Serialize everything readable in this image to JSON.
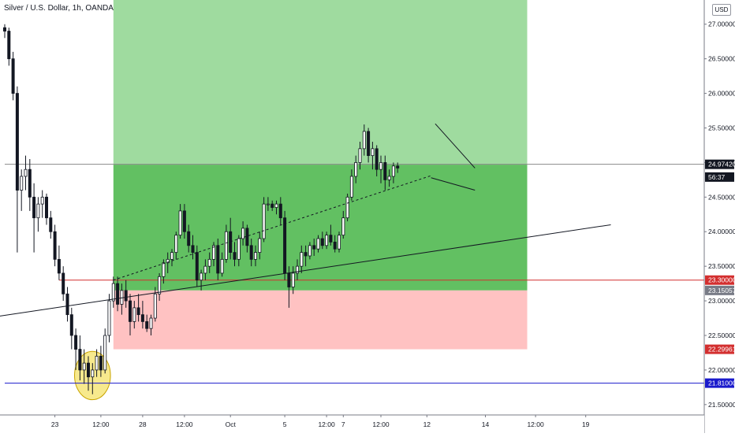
{
  "header": {
    "title": "Silver / U.S. Dollar, 1h, OANDA",
    "currency": "USD"
  },
  "colors": {
    "bull": "#26a69a",
    "bear": "#ef5350",
    "candle": "#131722",
    "target_zone_upper": "#9fdb9f",
    "target_zone_lower": "#62c062",
    "stop_zone": "#ffc2c2",
    "hline_red": "#d32f2f",
    "hline_blue": "#1a1acc",
    "hline_grey": "#8a8a8a",
    "highlight_fill": "#f7e98d",
    "highlight_stroke": "#c9a400"
  },
  "chart_data": {
    "type": "candlestick",
    "ylim": [
      21.35,
      27.35
    ],
    "yticks": [
      "21.50000",
      "22.00000",
      "22.50000",
      "23.00000",
      "23.50000",
      "24.00000",
      "24.50000",
      "25.00000",
      "25.50000",
      "26.00000",
      "26.50000",
      "27.00000"
    ],
    "ytick_values": [
      21.5,
      22.0,
      22.5,
      23.0,
      23.5,
      24.0,
      24.5,
      25.0,
      25.5,
      26.0,
      26.5,
      27.0
    ],
    "xticks": [
      "23",
      "12:00",
      "28",
      "12:00",
      "Oct",
      "5",
      "12:00",
      "7",
      "12:00",
      "12",
      "14",
      "12:00",
      "19"
    ],
    "xtick_bar_index": [
      12,
      23,
      33,
      43,
      54,
      67,
      77,
      81,
      90,
      101,
      115,
      127,
      139
    ],
    "price_labels": [
      {
        "label": "24.97420",
        "value": 24.9742,
        "color": "#131722"
      },
      {
        "label": "56:37",
        "value": 24.79,
        "color": "#131722"
      },
      {
        "label": "23.30000",
        "value": 23.3,
        "color": "#d32f2f"
      },
      {
        "label": "23.15057",
        "value": 23.15057,
        "color": "#787b86"
      },
      {
        "label": "22.29961",
        "value": 22.29961,
        "color": "#d32f2f"
      },
      {
        "label": "21.81000",
        "value": 21.81,
        "color": "#1a1acc"
      }
    ],
    "zones": {
      "target_upper": {
        "bar_from": 26,
        "bar_to": 125,
        "y_from": 24.97,
        "y_to": 27.35
      },
      "target_lower": {
        "bar_from": 26,
        "bar_to": 125,
        "y_from": 23.15057,
        "y_to": 24.97
      },
      "stop": {
        "bar_from": 26,
        "bar_to": 125,
        "y_from": 22.29961,
        "y_to": 23.15057
      }
    },
    "hlines": [
      {
        "value": 24.9742,
        "color": "#8a8a8a",
        "bar_from": 0
      },
      {
        "value": 23.3,
        "color": "#d32f2f",
        "bar_from": 13
      },
      {
        "value": 21.81,
        "color": "#1a1acc",
        "bar_from": 0
      }
    ],
    "trendlines": [
      {
        "from": [
          0,
          22.78
        ],
        "to": [
          145,
          24.1
        ],
        "color": "#131722",
        "dashed": false
      },
      {
        "from": [
          26,
          23.3
        ],
        "to": [
          102,
          24.81
        ],
        "color": "#131722",
        "dashed": true
      },
      {
        "from": [
          103,
          25.56
        ],
        "to": [
          112.5,
          24.92
        ],
        "color": "#131722",
        "dashed": false
      },
      {
        "from": [
          102,
          24.78
        ],
        "to": [
          112.5,
          24.6
        ],
        "color": "#131722",
        "dashed": false
      }
    ],
    "highlight": {
      "center_bar": 21,
      "center_value": 21.92,
      "rx_bars": 4.3,
      "ry_value": 0.35
    },
    "candles": [
      [
        26.95,
        27.0,
        26.8,
        26.9
      ],
      [
        26.9,
        26.95,
        26.4,
        26.5
      ],
      [
        26.5,
        26.6,
        25.9,
        26.0
      ],
      [
        26.0,
        26.1,
        23.7,
        24.6
      ],
      [
        24.6,
        24.9,
        24.3,
        24.8
      ],
      [
        24.8,
        25.1,
        24.6,
        24.9
      ],
      [
        24.9,
        25.05,
        24.3,
        24.5
      ],
      [
        24.5,
        24.7,
        23.7,
        24.2
      ],
      [
        24.2,
        24.5,
        24.0,
        24.4
      ],
      [
        24.4,
        24.6,
        24.2,
        24.5
      ],
      [
        24.5,
        24.55,
        24.1,
        24.2
      ],
      [
        24.2,
        24.3,
        23.9,
        24.0
      ],
      [
        24.0,
        24.1,
        23.5,
        23.6
      ],
      [
        23.6,
        23.8,
        23.3,
        23.4
      ],
      [
        23.4,
        23.5,
        23.0,
        23.1
      ],
      [
        23.1,
        23.2,
        22.7,
        22.8
      ],
      [
        22.8,
        22.9,
        22.3,
        22.5
      ],
      [
        22.5,
        22.6,
        22.0,
        22.3
      ],
      [
        22.3,
        22.5,
        21.85,
        22.0
      ],
      [
        22.0,
        22.3,
        21.8,
        22.1
      ],
      [
        22.1,
        22.2,
        21.7,
        21.9
      ],
      [
        21.9,
        22.1,
        21.65,
        22.0
      ],
      [
        22.0,
        22.3,
        21.9,
        22.2
      ],
      [
        22.2,
        22.35,
        21.9,
        22.0
      ],
      [
        22.0,
        22.6,
        21.95,
        22.5
      ],
      [
        22.5,
        23.1,
        22.4,
        23.0
      ],
      [
        23.0,
        23.35,
        22.9,
        23.25
      ],
      [
        23.25,
        23.35,
        22.85,
        22.95
      ],
      [
        22.95,
        23.25,
        22.8,
        23.15
      ],
      [
        23.15,
        23.3,
        22.9,
        23.0
      ],
      [
        23.0,
        23.1,
        22.5,
        22.7
      ],
      [
        22.7,
        23.0,
        22.6,
        22.9
      ],
      [
        22.9,
        23.1,
        22.7,
        22.8
      ],
      [
        22.8,
        23.0,
        22.6,
        22.7
      ],
      [
        22.7,
        22.8,
        22.55,
        22.6
      ],
      [
        22.6,
        22.8,
        22.5,
        22.75
      ],
      [
        22.75,
        23.2,
        22.7,
        23.1
      ],
      [
        23.1,
        23.4,
        23.0,
        23.35
      ],
      [
        23.35,
        23.6,
        23.25,
        23.55
      ],
      [
        23.55,
        23.7,
        23.4,
        23.6
      ],
      [
        23.6,
        23.75,
        23.5,
        23.7
      ],
      [
        23.7,
        24.0,
        23.6,
        23.95
      ],
      [
        23.95,
        24.4,
        23.9,
        24.3
      ],
      [
        24.3,
        24.4,
        23.9,
        24.0
      ],
      [
        24.0,
        24.1,
        23.7,
        23.8
      ],
      [
        23.8,
        23.95,
        23.6,
        23.7
      ],
      [
        23.7,
        23.8,
        23.2,
        23.3
      ],
      [
        23.3,
        23.45,
        23.15,
        23.4
      ],
      [
        23.4,
        23.6,
        23.3,
        23.5
      ],
      [
        23.5,
        23.7,
        23.4,
        23.6
      ],
      [
        23.6,
        23.85,
        23.5,
        23.8
      ],
      [
        23.8,
        23.9,
        23.3,
        23.4
      ],
      [
        23.4,
        23.7,
        23.35,
        23.6
      ],
      [
        23.6,
        24.1,
        23.55,
        24.0
      ],
      [
        24.0,
        24.2,
        23.6,
        23.7
      ],
      [
        23.7,
        23.85,
        23.5,
        23.6
      ],
      [
        23.6,
        23.95,
        23.5,
        23.9
      ],
      [
        23.9,
        24.15,
        23.8,
        24.05
      ],
      [
        24.05,
        24.1,
        23.7,
        23.8
      ],
      [
        23.8,
        23.9,
        23.5,
        23.6
      ],
      [
        23.6,
        23.8,
        23.5,
        23.7
      ],
      [
        23.7,
        24.0,
        23.6,
        23.9
      ],
      [
        23.9,
        24.5,
        23.85,
        24.4
      ],
      [
        24.4,
        24.5,
        24.3,
        24.4
      ],
      [
        24.4,
        24.45,
        24.3,
        24.35
      ],
      [
        24.35,
        24.45,
        24.25,
        24.4
      ],
      [
        24.4,
        24.5,
        24.1,
        24.2
      ],
      [
        24.2,
        24.3,
        23.3,
        23.4
      ],
      [
        23.4,
        23.5,
        22.9,
        23.2
      ],
      [
        23.2,
        23.5,
        23.1,
        23.4
      ],
      [
        23.4,
        23.6,
        23.3,
        23.5
      ],
      [
        23.5,
        23.8,
        23.4,
        23.7
      ],
      [
        23.7,
        23.8,
        23.5,
        23.65
      ],
      [
        23.65,
        23.85,
        23.6,
        23.8
      ],
      [
        23.8,
        23.9,
        23.65,
        23.75
      ],
      [
        23.75,
        23.95,
        23.7,
        23.9
      ],
      [
        23.9,
        24.0,
        23.75,
        23.8
      ],
      [
        23.8,
        24.0,
        23.75,
        23.95
      ],
      [
        23.95,
        24.1,
        23.8,
        23.85
      ],
      [
        23.85,
        23.95,
        23.7,
        23.75
      ],
      [
        23.75,
        24.0,
        23.7,
        23.95
      ],
      [
        23.95,
        24.3,
        23.9,
        24.2
      ],
      [
        24.2,
        24.55,
        24.15,
        24.5
      ],
      [
        24.5,
        24.9,
        24.45,
        24.8
      ],
      [
        24.8,
        25.1,
        24.7,
        25.0
      ],
      [
        25.0,
        25.3,
        24.9,
        25.2
      ],
      [
        25.2,
        25.55,
        25.1,
        25.45
      ],
      [
        25.45,
        25.5,
        25.0,
        25.1
      ],
      [
        25.1,
        25.3,
        24.9,
        25.2
      ],
      [
        25.2,
        25.25,
        24.8,
        24.9
      ],
      [
        24.9,
        25.1,
        24.7,
        25.0
      ],
      [
        25.0,
        25.1,
        24.6,
        24.75
      ],
      [
        24.75,
        24.9,
        24.65,
        24.8
      ],
      [
        24.8,
        25.0,
        24.7,
        24.95
      ],
      [
        24.95,
        25.0,
        24.85,
        24.92
      ]
    ]
  }
}
